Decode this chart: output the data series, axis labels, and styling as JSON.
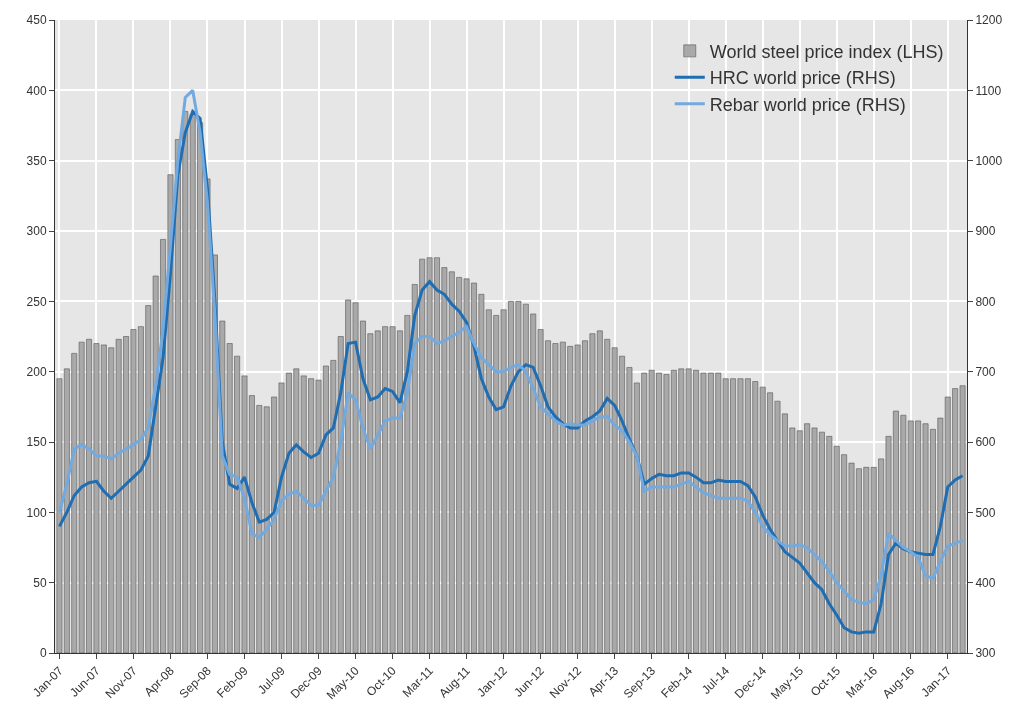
{
  "chart_data": {
    "type": "bar",
    "categories": [
      "Jan-07",
      null,
      null,
      null,
      null,
      "Jun-07",
      null,
      null,
      null,
      null,
      "Nov-07",
      null,
      null,
      null,
      null,
      "Apr-08",
      null,
      null,
      null,
      null,
      "Sep-08",
      null,
      null,
      null,
      null,
      "Feb-09",
      null,
      null,
      null,
      null,
      "Jul-09",
      null,
      null,
      null,
      null,
      "Dec-09",
      null,
      null,
      null,
      null,
      "May-10",
      null,
      null,
      null,
      null,
      "Oct-10",
      null,
      null,
      null,
      null,
      "Mar-11",
      null,
      null,
      null,
      null,
      "Aug-11",
      null,
      null,
      null,
      null,
      "Jan-12",
      null,
      null,
      null,
      null,
      "Jun-12",
      null,
      null,
      null,
      null,
      "Nov-12",
      null,
      null,
      null,
      null,
      "Apr-13",
      null,
      null,
      null,
      null,
      "Sep-13",
      null,
      null,
      null,
      null,
      "Feb-14",
      null,
      null,
      null,
      null,
      "Jul-14",
      null,
      null,
      null,
      null,
      "Dec-14",
      null,
      null,
      null,
      null,
      "May-15",
      null,
      null,
      null,
      null,
      "Oct-15",
      null,
      null,
      null,
      null,
      "Mar-16",
      null,
      null,
      null,
      null,
      "Aug-16",
      null,
      null,
      null,
      null,
      "Jan-17",
      null,
      null
    ],
    "series": [
      {
        "name": "World steel price index (LHS)",
        "color": "#a9a9a9",
        "values": [
          195,
          202,
          213,
          221,
          223,
          220,
          219,
          217,
          223,
          225,
          230,
          232,
          247,
          268,
          294,
          340,
          365,
          385,
          383,
          377,
          337,
          283,
          236,
          220,
          211,
          197,
          183,
          176,
          175,
          182,
          192,
          199,
          202,
          197,
          195,
          194,
          204,
          208,
          225,
          251,
          249,
          236,
          227,
          229,
          232,
          232,
          229,
          240,
          262,
          280,
          281,
          281,
          274,
          271,
          267,
          266,
          263,
          255,
          244,
          240,
          244,
          250,
          250,
          248,
          241,
          230,
          222,
          220,
          221,
          218,
          219,
          222,
          227,
          229,
          223,
          217,
          211,
          203,
          192,
          199,
          201,
          199,
          198,
          201,
          202,
          202,
          201,
          199,
          199,
          199,
          195,
          195,
          195,
          195,
          193,
          189,
          185,
          179,
          170,
          160,
          158,
          163,
          160,
          157,
          154,
          147,
          141,
          135,
          131,
          132,
          132,
          138,
          154,
          172,
          169,
          165,
          165,
          163,
          159,
          167,
          182,
          188,
          190
        ]
      },
      {
        "name": "HRC world price (RHS)",
        "type": "line",
        "axis": "y2",
        "color": "#1f6db3",
        "values": [
          480,
          500,
          524,
          536,
          542,
          544,
          530,
          520,
          530,
          540,
          550,
          560,
          580,
          650,
          720,
          840,
          980,
          1040,
          1070,
          1060,
          960,
          800,
          600,
          540,
          534,
          550,
          514,
          486,
          490,
          500,
          550,
          584,
          596,
          586,
          578,
          584,
          610,
          620,
          670,
          740,
          742,
          690,
          660,
          664,
          676,
          672,
          656,
          700,
          780,
          816,
          828,
          816,
          810,
          796,
          786,
          770,
          736,
          690,
          664,
          646,
          650,
          680,
          700,
          710,
          706,
          680,
          650,
          636,
          626,
          620,
          620,
          630,
          636,
          644,
          662,
          652,
          630,
          604,
          580,
          540,
          548,
          554,
          552,
          552,
          556,
          556,
          550,
          542,
          542,
          546,
          544,
          544,
          544,
          538,
          522,
          496,
          476,
          460,
          444,
          436,
          428,
          414,
          400,
          390,
          370,
          354,
          336,
          330,
          328,
          330,
          330,
          370,
          440,
          456,
          448,
          444,
          442,
          440,
          440,
          480,
          536,
          546,
          552
        ]
      },
      {
        "name": "Rebar world price (RHS)",
        "type": "line",
        "axis": "y2",
        "color": "#72a9de",
        "values": [
          500,
          540,
          590,
          596,
          590,
          580,
          580,
          576,
          584,
          590,
          596,
          604,
          620,
          680,
          760,
          880,
          1000,
          1090,
          1100,
          1040,
          940,
          780,
          580,
          554,
          550,
          520,
          470,
          464,
          476,
          490,
          516,
          526,
          530,
          520,
          510,
          510,
          530,
          550,
          600,
          670,
          660,
          620,
          590,
          610,
          630,
          634,
          634,
          670,
          740,
          750,
          750,
          740,
          744,
          750,
          756,
          764,
          740,
          720,
          710,
          700,
          700,
          706,
          710,
          700,
          676,
          650,
          640,
          630,
          624,
          626,
          624,
          624,
          630,
          636,
          636,
          624,
          616,
          600,
          580,
          530,
          536,
          536,
          536,
          536,
          540,
          544,
          536,
          528,
          524,
          520,
          520,
          520,
          520,
          516,
          500,
          480,
          468,
          460,
          452,
          452,
          454,
          450,
          440,
          430,
          416,
          400,
          388,
          376,
          372,
          370,
          376,
          410,
          470,
          460,
          450,
          444,
          436,
          410,
          406,
          430,
          452,
          456,
          460
        ]
      }
    ],
    "ylim": [
      0,
      450
    ],
    "yticks": [
      0,
      50,
      100,
      150,
      200,
      250,
      300,
      350,
      400,
      450
    ],
    "y2lim": [
      300,
      1200
    ],
    "y2ticks": [
      300,
      400,
      500,
      600,
      700,
      800,
      900,
      1000,
      1100,
      1200
    ],
    "grid": true,
    "legend": "top right",
    "marker": "none",
    "line_style": "solid"
  }
}
